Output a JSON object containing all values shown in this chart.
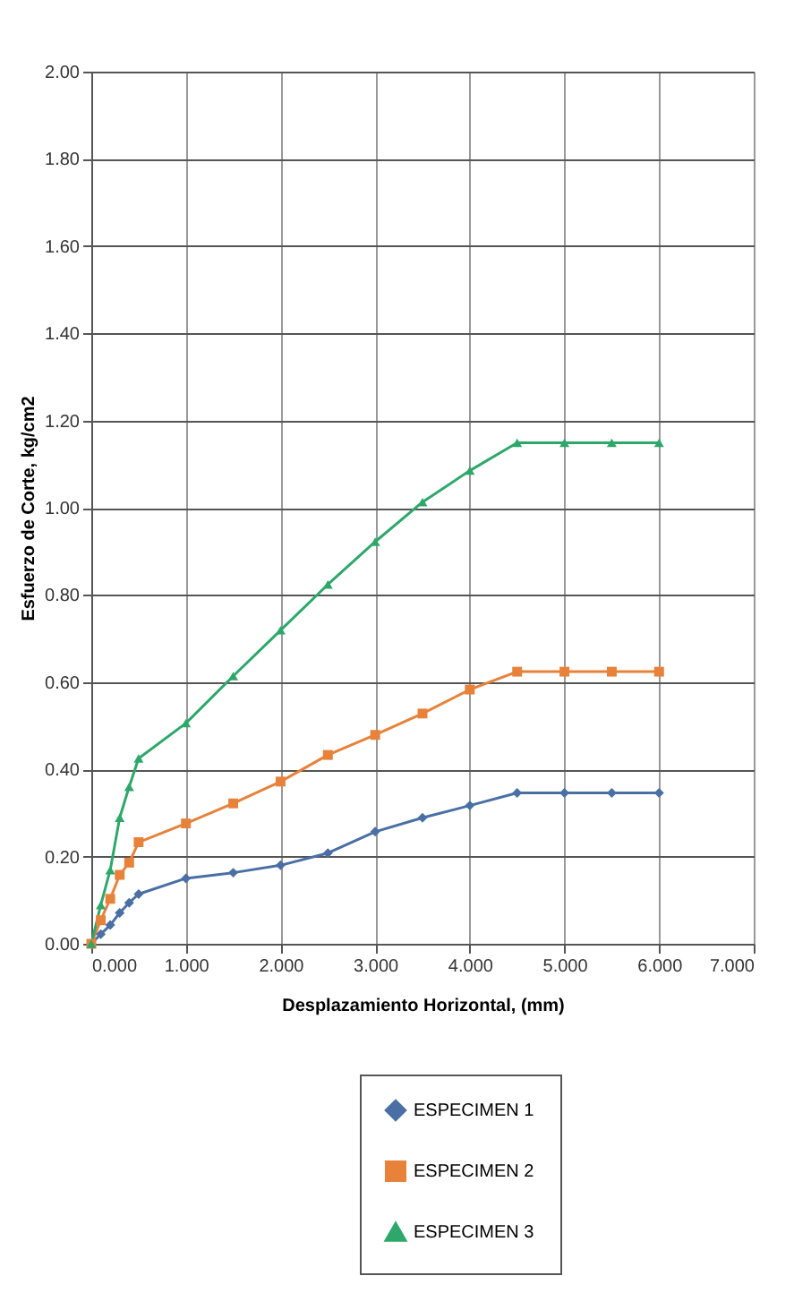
{
  "chart_data": {
    "type": "line",
    "xlabel": "Desplazamiento Horizontal,  (mm)",
    "ylabel": "Esfuerzo de Corte, kg/cm2",
    "x": [
      0,
      0.1,
      0.2,
      0.3,
      0.4,
      0.5,
      1,
      1.5,
      2,
      2.5,
      3,
      3.5,
      4,
      4.5,
      5,
      5.5,
      6
    ],
    "series": [
      {
        "name": "ESPECIMEN 1",
        "color": "#4a6fa5",
        "marker": "diamond",
        "values": [
          0,
          0.022,
          0.043,
          0.071,
          0.094,
          0.114,
          0.15,
          0.163,
          0.18,
          0.208,
          0.257,
          0.289,
          0.317,
          0.346,
          0.346,
          0.346,
          0.346
        ]
      },
      {
        "name": "ESPECIMEN 2",
        "color": "#e8823a",
        "marker": "square",
        "values": [
          0,
          0.054,
          0.103,
          0.158,
          0.186,
          0.233,
          0.276,
          0.322,
          0.372,
          0.433,
          0.479,
          0.528,
          0.583,
          0.624,
          0.624,
          0.624,
          0.624
        ]
      },
      {
        "name": "ESPECIMEN 3",
        "color": "#2ea86a",
        "marker": "triangle",
        "values": [
          0,
          0.089,
          0.169,
          0.289,
          0.36,
          0.425,
          0.506,
          0.614,
          0.719,
          0.824,
          0.922,
          1.013,
          1.085,
          1.149,
          1.149,
          1.149,
          1.149
        ]
      }
    ],
    "xlim": [
      0,
      7
    ],
    "xticks": [
      {
        "value": 0,
        "label": "0.000"
      },
      {
        "value": 1,
        "label": "1.000"
      },
      {
        "value": 2,
        "label": "2.000"
      },
      {
        "value": 3,
        "label": "3.000"
      },
      {
        "value": 4,
        "label": "4.000"
      },
      {
        "value": 5,
        "label": "5.000"
      },
      {
        "value": 6,
        "label": "6.000"
      },
      {
        "value": 7,
        "label": "7.000"
      }
    ],
    "ylim": [
      0,
      2
    ],
    "yticks": [
      {
        "value": 0,
        "label": "0.00"
      },
      {
        "value": 0.2,
        "label": "0.20"
      },
      {
        "value": 0.4,
        "label": "0.40"
      },
      {
        "value": 0.6,
        "label": "0.60"
      },
      {
        "value": 0.8,
        "label": "0.80"
      },
      {
        "value": 1.0,
        "label": "1.00"
      },
      {
        "value": 1.2,
        "label": "1.20"
      },
      {
        "value": 1.4,
        "label": "1.40"
      },
      {
        "value": 1.6,
        "label": "1.60"
      },
      {
        "value": 1.8,
        "label": "1.80"
      },
      {
        "value": 2.0,
        "label": "2.00"
      }
    ],
    "grid": true,
    "legend": "bottom",
    "line_style": "solid"
  }
}
